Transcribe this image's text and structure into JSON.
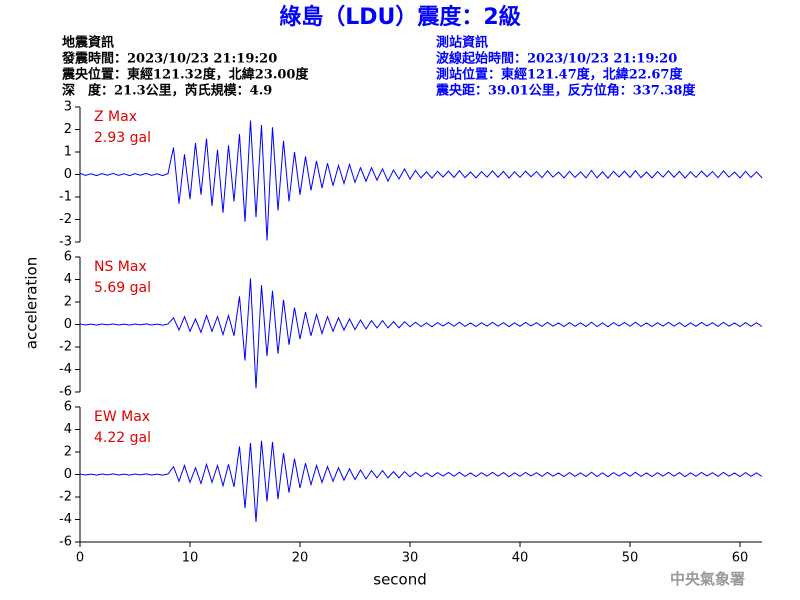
{
  "header": {
    "title": "綠島（LDU）震度：2級",
    "left": [
      "地震資訊",
      "發震時間：2023/10/23 21:19:20",
      "震央位置：東經121.32度，北緯23.00度",
      "深　度：21.3公里，芮氏規模：4.9"
    ],
    "right": [
      "測站資訊",
      "波線起始時間：2023/10/23 21:19:20",
      "測站位置：東經121.47度，北緯22.67度",
      "震央距：39.01公里，反方位角：337.38度"
    ]
  },
  "y_label": "acceleration",
  "x_label": "second",
  "footer": "中央氣象署",
  "chart_data": [
    {
      "type": "line",
      "annotation": [
        "Z Max",
        "2.93 gal"
      ],
      "color": "#0000ff",
      "xlim": [
        0,
        62
      ],
      "ylim": [
        -3,
        3
      ],
      "yticks": [
        -3,
        -2,
        -1,
        0,
        1,
        2,
        3
      ],
      "x": [
        0,
        0.5,
        1,
        1.5,
        2,
        2.5,
        3,
        3.5,
        4,
        4.5,
        5,
        5.5,
        6,
        6.5,
        7,
        7.5,
        8,
        8.5,
        9,
        9.5,
        10,
        10.5,
        11,
        11.5,
        12,
        12.5,
        13,
        13.5,
        14,
        14.5,
        15,
        15.5,
        16,
        16.5,
        17,
        17.5,
        18,
        18.5,
        19,
        19.5,
        20,
        20.5,
        21,
        21.5,
        22,
        22.5,
        23,
        23.5,
        24,
        24.5,
        25,
        25.5,
        26,
        26.5,
        27,
        27.5,
        28,
        28.5,
        29,
        29.5,
        30,
        30.5,
        31,
        31.5,
        32,
        32.5,
        33,
        33.5,
        34,
        34.5,
        35,
        35.5,
        36,
        36.5,
        37,
        37.5,
        38,
        38.5,
        39,
        39.5,
        40,
        40.5,
        41,
        41.5,
        42,
        42.5,
        43,
        43.5,
        44,
        44.5,
        45,
        45.5,
        46,
        46.5,
        47,
        47.5,
        48,
        48.5,
        49,
        49.5,
        50,
        50.5,
        51,
        51.5,
        52,
        52.5,
        53,
        53.5,
        54,
        54.5,
        55,
        55.5,
        56,
        56.5,
        57,
        57.5,
        58,
        58.5,
        59,
        59.5,
        60,
        60.5,
        61,
        61.5,
        62
      ],
      "values": [
        0.05,
        -0.04,
        0.03,
        -0.05,
        0.04,
        -0.03,
        0.05,
        -0.04,
        0.03,
        -0.05,
        0.04,
        -0.03,
        0.05,
        -0.04,
        0.03,
        -0.05,
        0.04,
        1.2,
        -1.3,
        0.9,
        -1.1,
        1.4,
        -0.9,
        1.6,
        -1.4,
        1.1,
        -1.7,
        1.3,
        -1.2,
        1.8,
        -2.1,
        2.4,
        -1.9,
        2.2,
        -2.93,
        2.1,
        -1.6,
        1.5,
        -1.2,
        1.0,
        -0.9,
        0.8,
        -0.7,
        0.6,
        -0.6,
        0.5,
        -0.5,
        0.4,
        -0.4,
        0.45,
        -0.35,
        0.3,
        -0.3,
        0.3,
        -0.25,
        0.25,
        -0.3,
        0.2,
        -0.2,
        0.25,
        -0.2,
        0.18,
        -0.15,
        0.12,
        -0.16,
        0.14,
        -0.11,
        0.15,
        -0.13,
        0.17,
        -0.14,
        0.11,
        -0.15,
        0.13,
        -0.12,
        0.16,
        -0.12,
        0.14,
        -0.16,
        0.12,
        -0.13,
        0.15,
        -0.1,
        0.13,
        -0.14,
        0.16,
        -0.12,
        0.11,
        -0.15,
        0.14,
        -0.13,
        0.12,
        -0.15,
        0.18,
        -0.15,
        0.12,
        -0.16,
        0.14,
        -0.11,
        0.15,
        -0.13,
        0.17,
        -0.14,
        0.11,
        -0.15,
        0.13,
        -0.12,
        0.16,
        -0.12,
        0.14,
        -0.16,
        0.12,
        -0.13,
        0.15,
        -0.1,
        0.13,
        -0.14,
        0.16,
        -0.12,
        0.11,
        -0.15,
        0.14,
        -0.13,
        0.12,
        -0.15
      ]
    },
    {
      "type": "line",
      "annotation": [
        "NS Max",
        "5.69 gal"
      ],
      "color": "#0000ff",
      "xlim": [
        0,
        62
      ],
      "ylim": [
        -6,
        6
      ],
      "yticks": [
        -6,
        -4,
        -2,
        0,
        2,
        4,
        6
      ],
      "x": [
        0,
        0.5,
        1,
        1.5,
        2,
        2.5,
        3,
        3.5,
        4,
        4.5,
        5,
        5.5,
        6,
        6.5,
        7,
        7.5,
        8,
        8.5,
        9,
        9.5,
        10,
        10.5,
        11,
        11.5,
        12,
        12.5,
        13,
        13.5,
        14,
        14.5,
        15,
        15.5,
        16,
        16.5,
        17,
        17.5,
        18,
        18.5,
        19,
        19.5,
        20,
        20.5,
        21,
        21.5,
        22,
        22.5,
        23,
        23.5,
        24,
        24.5,
        25,
        25.5,
        26,
        26.5,
        27,
        27.5,
        28,
        28.5,
        29,
        29.5,
        30,
        30.5,
        31,
        31.5,
        32,
        32.5,
        33,
        33.5,
        34,
        34.5,
        35,
        35.5,
        36,
        36.5,
        37,
        37.5,
        38,
        38.5,
        39,
        39.5,
        40,
        40.5,
        41,
        41.5,
        42,
        42.5,
        43,
        43.5,
        44,
        44.5,
        45,
        45.5,
        46,
        46.5,
        47,
        47.5,
        48,
        48.5,
        49,
        49.5,
        50,
        50.5,
        51,
        51.5,
        52,
        52.5,
        53,
        53.5,
        54,
        54.5,
        55,
        55.5,
        56,
        56.5,
        57,
        57.5,
        58,
        58.5,
        59,
        59.5,
        60,
        60.5,
        61,
        61.5,
        62
      ],
      "values": [
        0.05,
        -0.04,
        0.03,
        -0.05,
        0.04,
        -0.03,
        0.05,
        -0.04,
        0.03,
        -0.05,
        0.04,
        -0.03,
        0.05,
        -0.04,
        0.03,
        -0.05,
        0.04,
        0.6,
        -0.5,
        0.7,
        -0.6,
        0.5,
        -0.7,
        0.8,
        -0.6,
        0.7,
        -0.9,
        0.8,
        -1.0,
        2.5,
        -3.2,
        4.1,
        -5.69,
        3.5,
        -2.8,
        3.0,
        -2.6,
        2.2,
        -1.8,
        1.5,
        -1.3,
        1.1,
        -1.0,
        0.9,
        -0.8,
        0.7,
        -0.6,
        0.6,
        -0.5,
        0.5,
        -0.45,
        0.4,
        -0.4,
        0.35,
        -0.3,
        0.35,
        -0.3,
        0.25,
        -0.3,
        0.25,
        -0.2,
        0.2,
        -0.18,
        0.15,
        -0.2,
        0.17,
        -0.14,
        0.18,
        -0.16,
        0.2,
        -0.17,
        0.14,
        -0.18,
        0.16,
        -0.15,
        0.19,
        -0.15,
        0.17,
        -0.19,
        0.15,
        -0.16,
        0.18,
        -0.13,
        0.16,
        -0.17,
        0.19,
        -0.15,
        0.14,
        -0.18,
        0.17,
        -0.16,
        0.15,
        -0.18,
        0.2,
        -0.18,
        0.15,
        -0.2,
        0.17,
        -0.14,
        0.18,
        -0.16,
        0.2,
        -0.17,
        0.14,
        -0.18,
        0.16,
        -0.15,
        0.19,
        -0.15,
        0.17,
        -0.19,
        0.15,
        -0.16,
        0.18,
        -0.13,
        0.16,
        -0.17,
        0.19,
        -0.15,
        0.14,
        -0.18,
        0.17,
        -0.16,
        0.15,
        -0.18
      ]
    },
    {
      "type": "line",
      "annotation": [
        "EW Max",
        "4.22 gal"
      ],
      "color": "#0000ff",
      "xlim": [
        0,
        62
      ],
      "ylim": [
        -6,
        6
      ],
      "yticks": [
        -6,
        -4,
        -2,
        0,
        2,
        4,
        6
      ],
      "xticks": [
        0,
        10,
        20,
        30,
        40,
        50,
        60
      ],
      "x": [
        0,
        0.5,
        1,
        1.5,
        2,
        2.5,
        3,
        3.5,
        4,
        4.5,
        5,
        5.5,
        6,
        6.5,
        7,
        7.5,
        8,
        8.5,
        9,
        9.5,
        10,
        10.5,
        11,
        11.5,
        12,
        12.5,
        13,
        13.5,
        14,
        14.5,
        15,
        15.5,
        16,
        16.5,
        17,
        17.5,
        18,
        18.5,
        19,
        19.5,
        20,
        20.5,
        21,
        21.5,
        22,
        22.5,
        23,
        23.5,
        24,
        24.5,
        25,
        25.5,
        26,
        26.5,
        27,
        27.5,
        28,
        28.5,
        29,
        29.5,
        30,
        30.5,
        31,
        31.5,
        32,
        32.5,
        33,
        33.5,
        34,
        34.5,
        35,
        35.5,
        36,
        36.5,
        37,
        37.5,
        38,
        38.5,
        39,
        39.5,
        40,
        40.5,
        41,
        41.5,
        42,
        42.5,
        43,
        43.5,
        44,
        44.5,
        45,
        45.5,
        46,
        46.5,
        47,
        47.5,
        48,
        48.5,
        49,
        49.5,
        50,
        50.5,
        51,
        51.5,
        52,
        52.5,
        53,
        53.5,
        54,
        54.5,
        55,
        55.5,
        56,
        56.5,
        57,
        57.5,
        58,
        58.5,
        59,
        59.5,
        60,
        60.5,
        61,
        61.5,
        62
      ],
      "values": [
        0.05,
        -0.04,
        0.03,
        -0.05,
        0.04,
        -0.03,
        0.05,
        -0.04,
        0.03,
        -0.05,
        0.04,
        -0.03,
        0.05,
        -0.04,
        0.03,
        -0.05,
        0.04,
        0.7,
        -0.6,
        0.8,
        -0.7,
        0.6,
        -0.8,
        0.9,
        -0.7,
        0.8,
        -1.0,
        0.9,
        -1.1,
        2.5,
        -3.0,
        2.8,
        -4.22,
        3.0,
        -2.4,
        2.9,
        -2.2,
        1.9,
        -1.6,
        1.4,
        -1.2,
        1.0,
        -0.9,
        0.8,
        -0.7,
        0.7,
        -0.6,
        0.6,
        -0.5,
        0.5,
        -0.45,
        0.4,
        -0.4,
        0.35,
        -0.3,
        0.35,
        -0.3,
        0.25,
        -0.3,
        0.25,
        -0.2,
        0.2,
        -0.18,
        0.15,
        -0.2,
        0.17,
        -0.14,
        0.18,
        -0.16,
        0.2,
        -0.17,
        0.14,
        -0.18,
        0.16,
        -0.15,
        0.19,
        -0.15,
        0.17,
        -0.19,
        0.15,
        -0.16,
        0.18,
        -0.13,
        0.16,
        -0.17,
        0.19,
        -0.15,
        0.14,
        -0.18,
        0.17,
        -0.16,
        0.15,
        -0.18,
        0.2,
        -0.18,
        0.15,
        -0.2,
        0.17,
        -0.14,
        0.18,
        -0.16,
        0.2,
        -0.17,
        0.14,
        -0.18,
        0.16,
        -0.15,
        0.19,
        -0.15,
        0.17,
        -0.19,
        0.15,
        -0.16,
        0.18,
        -0.13,
        0.16,
        -0.17,
        0.19,
        -0.15,
        0.14,
        -0.18,
        0.17,
        -0.16,
        0.15,
        -0.18
      ]
    }
  ]
}
